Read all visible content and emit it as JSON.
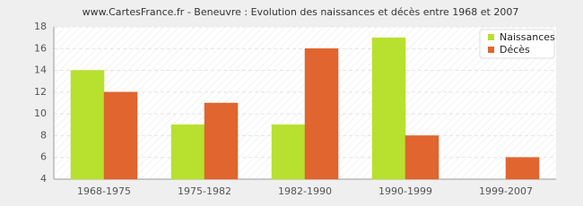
{
  "chart_data": {
    "type": "bar",
    "title": "www.CartesFrance.fr - Beneuvre : Evolution des naissances et décès entre 1968 et 2007",
    "categories": [
      "1968-1975",
      "1975-1982",
      "1982-1990",
      "1990-1999",
      "1999-2007"
    ],
    "series": [
      {
        "name": "Naissances",
        "color": "#b8e02e",
        "values": [
          14,
          9,
          9,
          17,
          4
        ]
      },
      {
        "name": "Décès",
        "color": "#e0652f",
        "values": [
          12,
          11,
          16,
          8,
          6
        ]
      }
    ],
    "ylim": [
      4,
      18
    ],
    "yticks": [
      4,
      6,
      8,
      10,
      12,
      14,
      16,
      18
    ],
    "grid": true,
    "legend": "top-right"
  }
}
